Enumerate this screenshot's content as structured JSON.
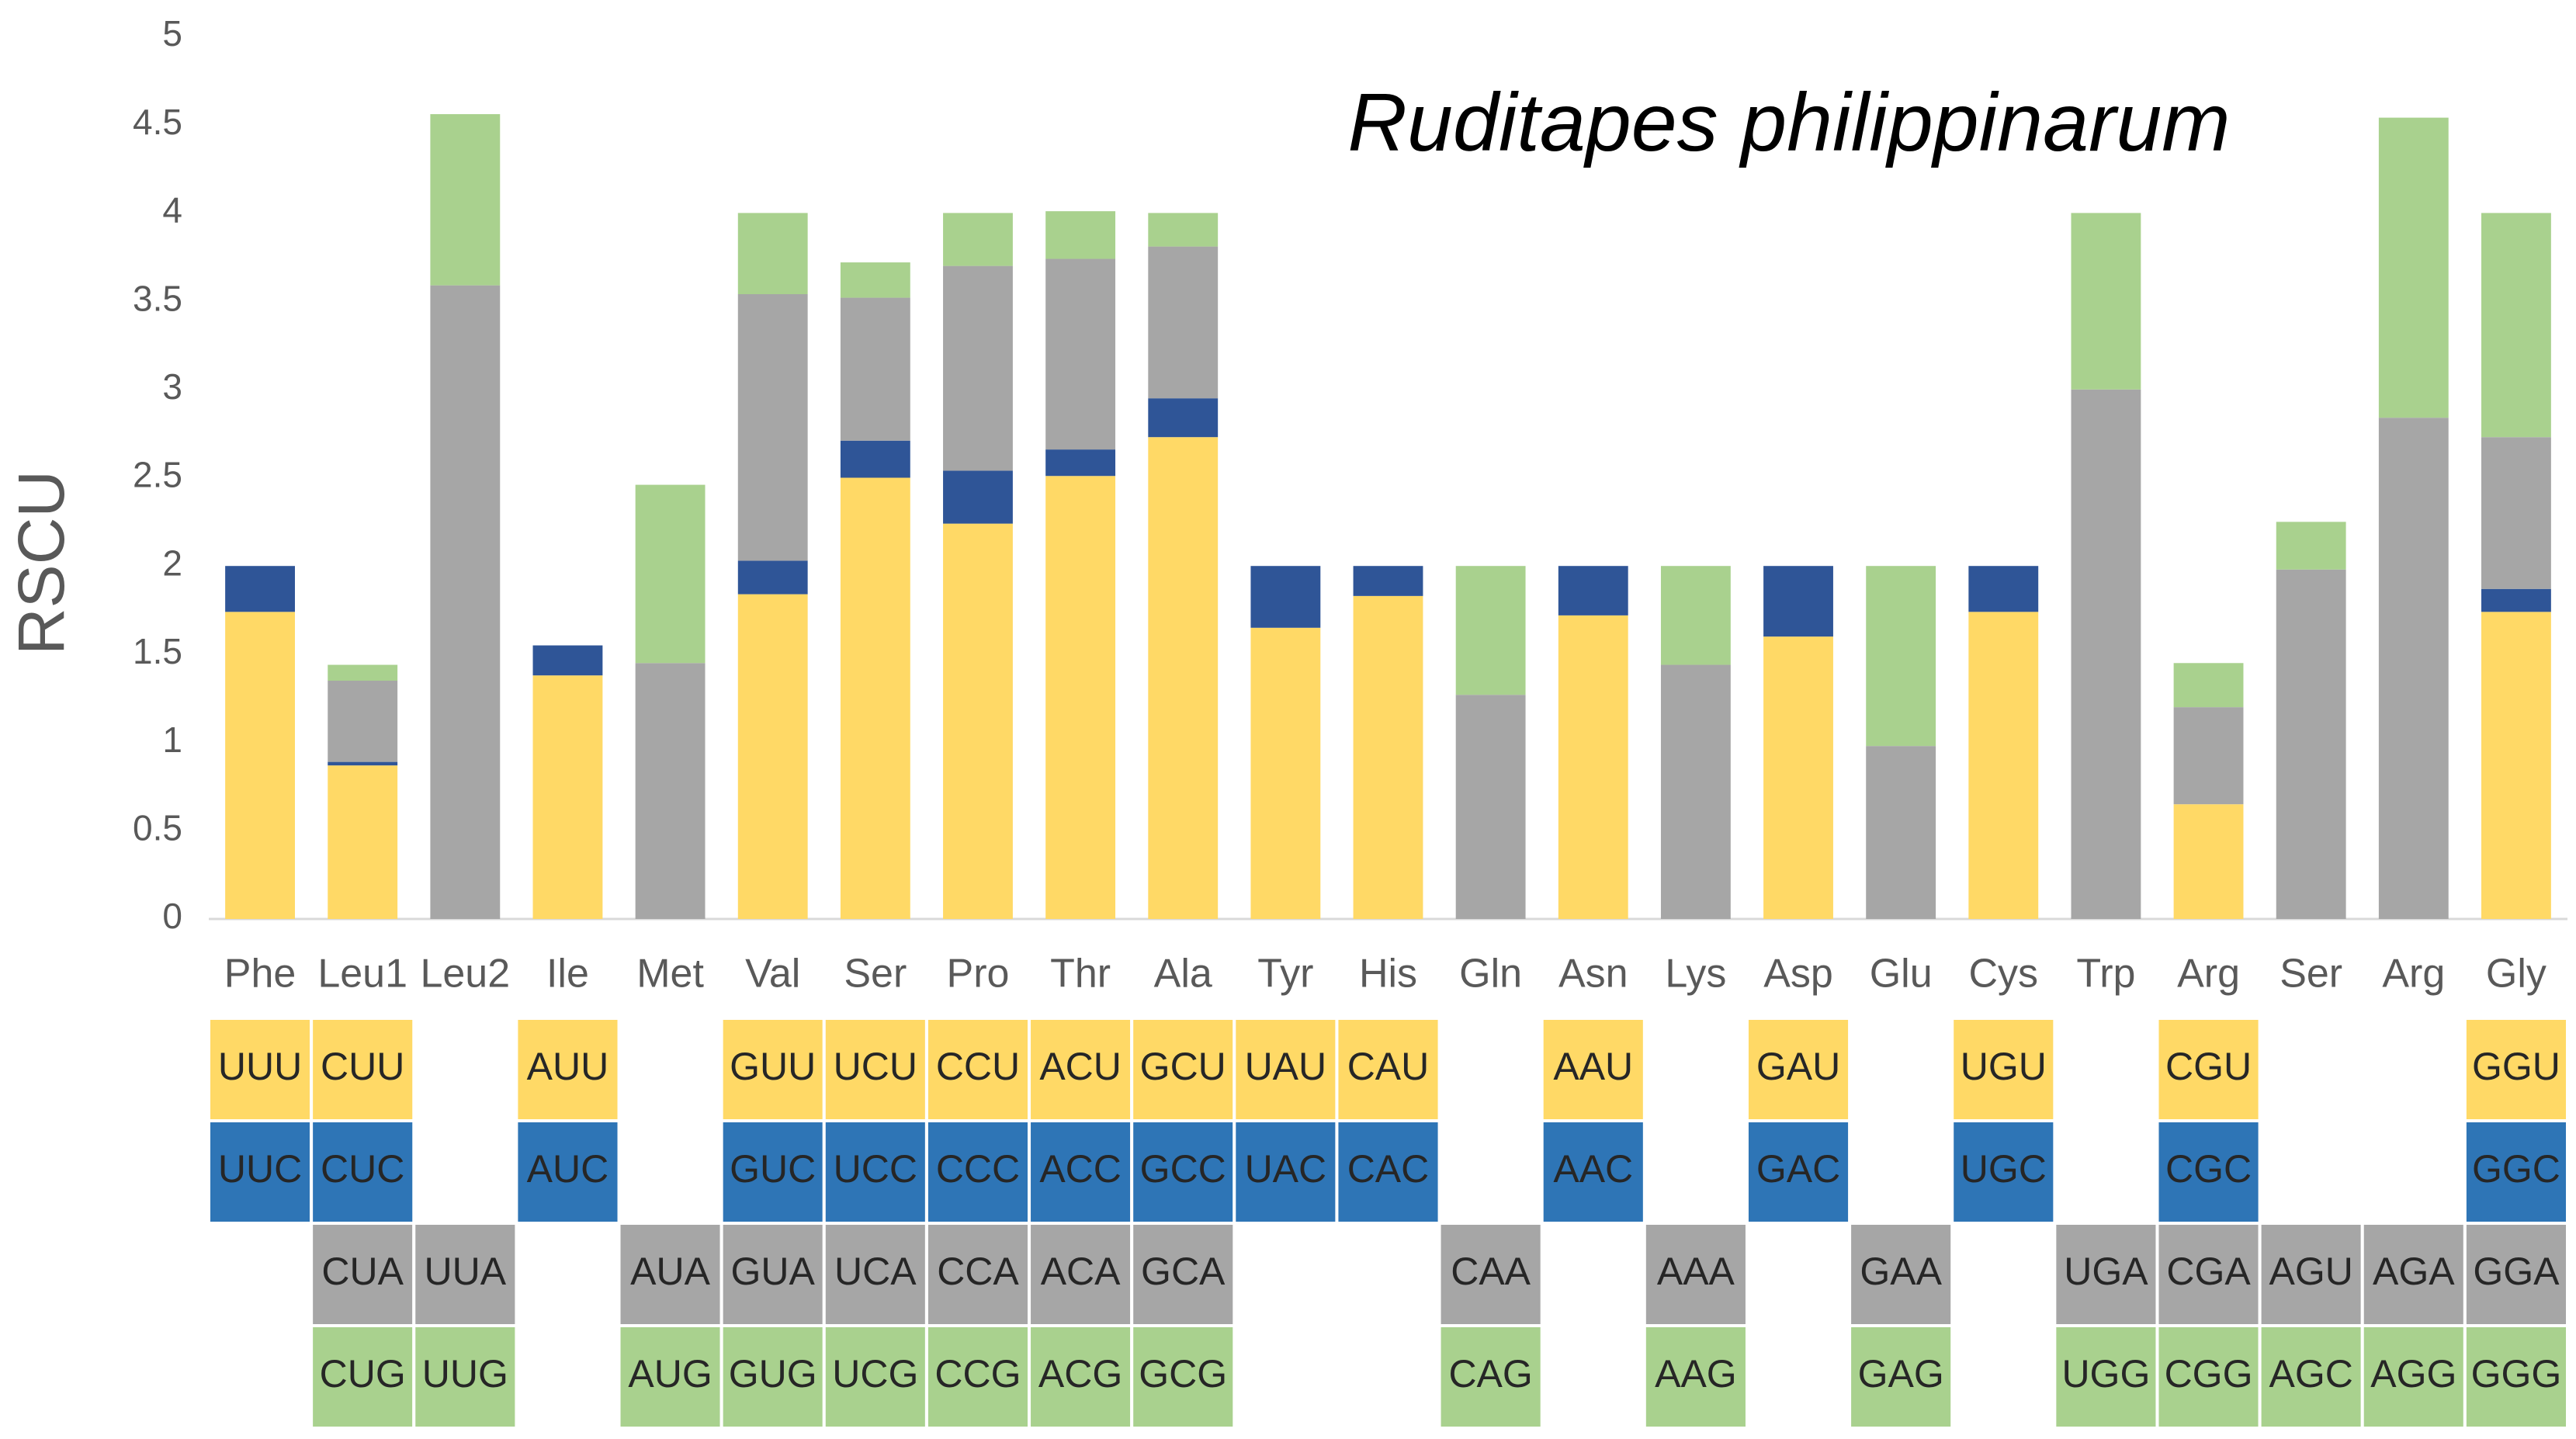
{
  "chart_data": {
    "type": "stacked_bar",
    "title": "Ruditapes philippinarum",
    "y_label": "RSCU",
    "categories": [
      "Phe",
      "Leu1",
      "Leu2",
      "Ile",
      "Met",
      "Val",
      "Ser",
      "Pro",
      "Thr",
      "Ala",
      "Tyr",
      "His",
      "Gln",
      "Asn",
      "Lys",
      "Asp",
      "Glu",
      "Cys",
      "Trp",
      "Arg",
      "Ser",
      "Arg",
      "Gly"
    ],
    "ylim": [
      0,
      5
    ],
    "yticks": [
      0,
      0.5,
      1,
      1.5,
      2,
      2.5,
      3,
      3.5,
      4,
      4.5,
      5
    ],
    "grid": false,
    "series": [
      {
        "color": "#FFD966",
        "cell_color": "#FFD966",
        "values": [
          1.74,
          0.87,
          null,
          1.38,
          null,
          1.84,
          2.5,
          2.24,
          2.51,
          2.73,
          1.65,
          1.83,
          null,
          1.72,
          null,
          1.6,
          null,
          1.74,
          null,
          0.65,
          null,
          null,
          1.74
        ],
        "codons": [
          "UUU",
          "CUU",
          null,
          "AUU",
          null,
          "GUU",
          "UCU",
          "CCU",
          "ACU",
          "GCU",
          "UAU",
          "CAU",
          null,
          "AAU",
          null,
          "GAU",
          null,
          "UGU",
          null,
          "CGU",
          null,
          null,
          "GGU"
        ]
      },
      {
        "color": "#2F5597",
        "cell_color": "#2E75B6",
        "values": [
          0.26,
          0.02,
          null,
          0.17,
          null,
          0.19,
          0.21,
          0.3,
          0.15,
          0.22,
          0.35,
          0.17,
          null,
          0.28,
          null,
          0.4,
          null,
          0.26,
          null,
          0,
          null,
          null,
          0.13
        ],
        "codons": [
          "UUC",
          "CUC",
          null,
          "AUC",
          null,
          "GUC",
          "UCC",
          "CCC",
          "ACC",
          "GCC",
          "UAC",
          "CAC",
          null,
          "AAC",
          null,
          "GAC",
          null,
          "UGC",
          null,
          "CGC",
          null,
          null,
          "GGC"
        ]
      },
      {
        "color": "#A6A6A6",
        "cell_color": "#A6A6A6",
        "values": [
          null,
          0.46,
          3.59,
          null,
          1.45,
          1.51,
          0.81,
          1.16,
          1.08,
          0.86,
          null,
          null,
          1.27,
          null,
          1.44,
          null,
          0.98,
          null,
          3.0,
          0.55,
          1.98,
          2.84,
          0.86
        ],
        "codons": [
          null,
          "CUA",
          "UUA",
          null,
          "AUA",
          "GUA",
          "UCA",
          "CCA",
          "ACA",
          "GCA",
          null,
          null,
          "CAA",
          null,
          "AAA",
          null,
          "GAA",
          null,
          "UGA",
          "CGA",
          "AGU",
          "AGA",
          "GGA"
        ]
      },
      {
        "color": "#A9D18E",
        "cell_color": "#A9D18E",
        "values": [
          null,
          0.09,
          0.97,
          null,
          1.01,
          0.46,
          0.2,
          0.3,
          0.27,
          0.19,
          null,
          null,
          0.73,
          null,
          0.56,
          null,
          1.02,
          null,
          1.0,
          0.25,
          0.27,
          1.7,
          1.27
        ],
        "codons": [
          null,
          "CUG",
          "UUG",
          null,
          "AUG",
          "GUG",
          "UCG",
          "CCG",
          "ACG",
          "GCG",
          null,
          null,
          "CAG",
          null,
          "AAG",
          null,
          "GAG",
          null,
          "UGG",
          "CGG",
          "AGC",
          "AGG",
          "GGG"
        ]
      }
    ]
  }
}
